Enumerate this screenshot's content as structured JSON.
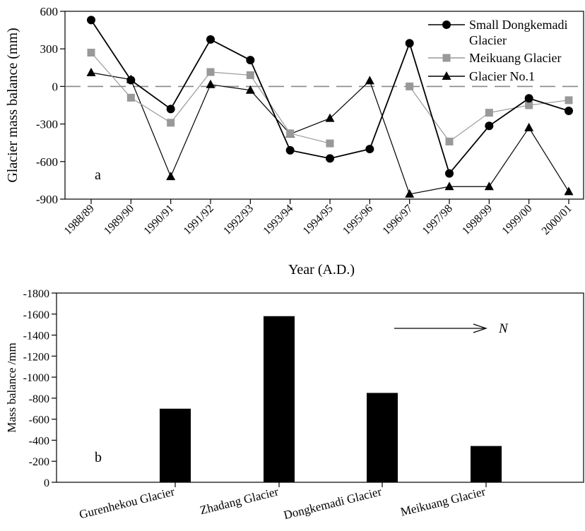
{
  "chart_data": [
    {
      "type": "line",
      "panel_label": "a",
      "xlabel": "Year (A.D.)",
      "ylabel": "Glacier mass balance (mm)",
      "ylim": [
        -900,
        600
      ],
      "yticks": [
        600,
        300,
        0,
        -300,
        -600,
        -900
      ],
      "categories": [
        "1988/89",
        "1989/90",
        "1990/91",
        "1991/92",
        "1992/93",
        "1993/94",
        "1994/95",
        "1995/96",
        "1996/97",
        "1997/98",
        "1998/99",
        "1999/00",
        "2000/01"
      ],
      "reference_line": {
        "y": 0,
        "style": "dashed"
      },
      "legend_position": "top-right",
      "grid": false,
      "series": [
        {
          "name": "Small Dongkemadi Glacier",
          "marker": "circle",
          "color": "#000000",
          "values": [
            530,
            50,
            -180,
            375,
            210,
            -510,
            -575,
            -500,
            345,
            -695,
            -315,
            -95,
            -195
          ]
        },
        {
          "name": "Meikuang Glacier",
          "marker": "square",
          "color": "#999999",
          "values": [
            270,
            -90,
            -290,
            115,
            90,
            -375,
            -455,
            null,
            0,
            -440,
            -210,
            -150,
            -110
          ]
        },
        {
          "name": "Glacier No.1",
          "marker": "triangle",
          "color": "#000000",
          "values": [
            110,
            55,
            -720,
            15,
            -30,
            -380,
            -255,
            45,
            -860,
            -800,
            -800,
            -330,
            -840
          ]
        }
      ]
    },
    {
      "type": "bar",
      "panel_label": "b",
      "xlabel": "",
      "ylabel": "Mass balance /mm",
      "ylim": [
        0,
        -1800
      ],
      "yticks": [
        -1800,
        -1600,
        -1400,
        -1200,
        -1000,
        -800,
        -600,
        -400,
        -200,
        0
      ],
      "categories": [
        "Gurenhekou Glacier",
        "Zhadang Glacier",
        "Dongkemadi Glacier",
        "Meikuang Glacier"
      ],
      "values": [
        -700,
        -1580,
        -850,
        -345
      ],
      "color": "#000000",
      "grid": false,
      "annotation": "N"
    }
  ]
}
